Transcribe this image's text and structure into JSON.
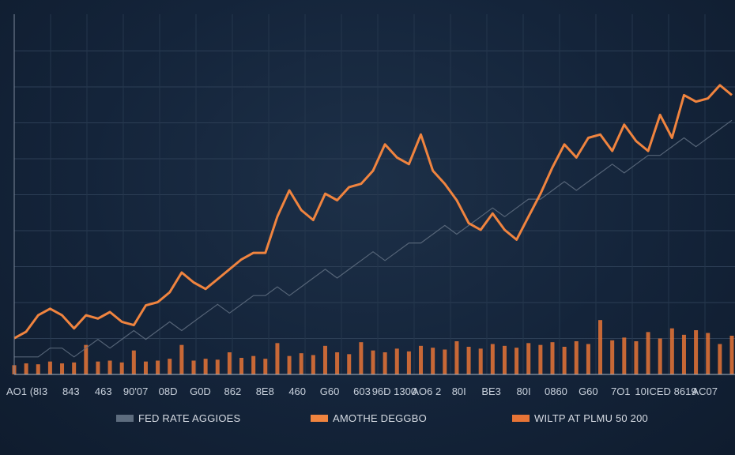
{
  "chart_data": {
    "type": "line",
    "title": "",
    "xlabel": "",
    "ylabel": "",
    "x_tick_labels": [
      "AO1",
      "(8I3",
      "843",
      "463",
      "90'07",
      "08D",
      "G0D",
      "862",
      "8E8",
      "460",
      "G60",
      "603",
      "96D 1300",
      "AO6 2",
      "80I",
      "BE3",
      "80I",
      "0860",
      "G60",
      "7O1",
      "10ICED",
      "8619",
      "AC07"
    ],
    "x": [
      0,
      1,
      2,
      3,
      4,
      5,
      6,
      7,
      8,
      9,
      10,
      11,
      12,
      13,
      14,
      15,
      16,
      17,
      18,
      19,
      20,
      21,
      22,
      23,
      24,
      25,
      26,
      27,
      28,
      29,
      30,
      31,
      32,
      33,
      34,
      35,
      36,
      37,
      38,
      39,
      40,
      41,
      42,
      43,
      44,
      45,
      46,
      47,
      48,
      49,
      50,
      51,
      52,
      53,
      54,
      55,
      56,
      57,
      58,
      59,
      60
    ],
    "ylim": [
      0,
      100
    ],
    "grid": true,
    "legend_position": "bottom",
    "series": [
      {
        "name": "FED RATE AGGIOES",
        "color": "#5d6c7e",
        "values": [
          1.5,
          1.5,
          1.5,
          1.6,
          1.6,
          1.5,
          1.6,
          1.7,
          1.6,
          1.7,
          1.8,
          1.7,
          1.8,
          1.9,
          1.8,
          1.9,
          2.0,
          2.1,
          2.0,
          2.1,
          2.2,
          2.2,
          2.3,
          2.2,
          2.3,
          2.4,
          2.5,
          2.4,
          2.5,
          2.6,
          2.7,
          2.6,
          2.7,
          2.8,
          2.8,
          2.9,
          3.0,
          2.9,
          3.0,
          3.1,
          3.2,
          3.1,
          3.2,
          3.3,
          3.3,
          3.4,
          3.5,
          3.4,
          3.5,
          3.6,
          3.7,
          3.6,
          3.7,
          3.8,
          3.8,
          3.9,
          4.0,
          3.9,
          4.0,
          4.1,
          4.2
        ]
      },
      {
        "name": "AMOTHE DEGGBO",
        "color": "#f0843f",
        "values": [
          11,
          13,
          18,
          20,
          18,
          14,
          18,
          17,
          19,
          16,
          15,
          21,
          22,
          25,
          31,
          28,
          26,
          29,
          32,
          35,
          37,
          37,
          48,
          56,
          50,
          47,
          55,
          53,
          57,
          58,
          62,
          70,
          66,
          64,
          73,
          62,
          58,
          53,
          46,
          44,
          49,
          44,
          41,
          48,
          55,
          63,
          70,
          66,
          72,
          73,
          68,
          76,
          71,
          68,
          79,
          72,
          85,
          83,
          84,
          88,
          85
        ]
      },
      {
        "name": "WILTP AT PLMU 50 200",
        "color": "#e77436",
        "values": [
          1.0,
          1.2,
          1.1,
          1.4,
          1.2,
          1.3,
          3.2,
          1.4,
          1.5,
          1.3,
          2.6,
          1.4,
          1.5,
          1.7,
          3.2,
          1.5,
          1.7,
          1.6,
          2.4,
          1.8,
          2.0,
          1.7,
          3.4,
          2.0,
          2.3,
          2.1,
          3.1,
          2.4,
          2.2,
          3.5,
          2.6,
          2.4,
          2.8,
          2.5,
          3.1,
          2.9,
          2.7,
          3.6,
          3.0,
          2.8,
          3.3,
          3.1,
          2.9,
          3.4,
          3.2,
          3.5,
          3.0,
          3.6,
          3.3,
          5.9,
          3.7,
          4.0,
          3.6,
          4.6,
          3.9,
          5.0,
          4.3,
          4.8,
          4.5,
          3.3,
          4.2
        ]
      }
    ]
  }
}
